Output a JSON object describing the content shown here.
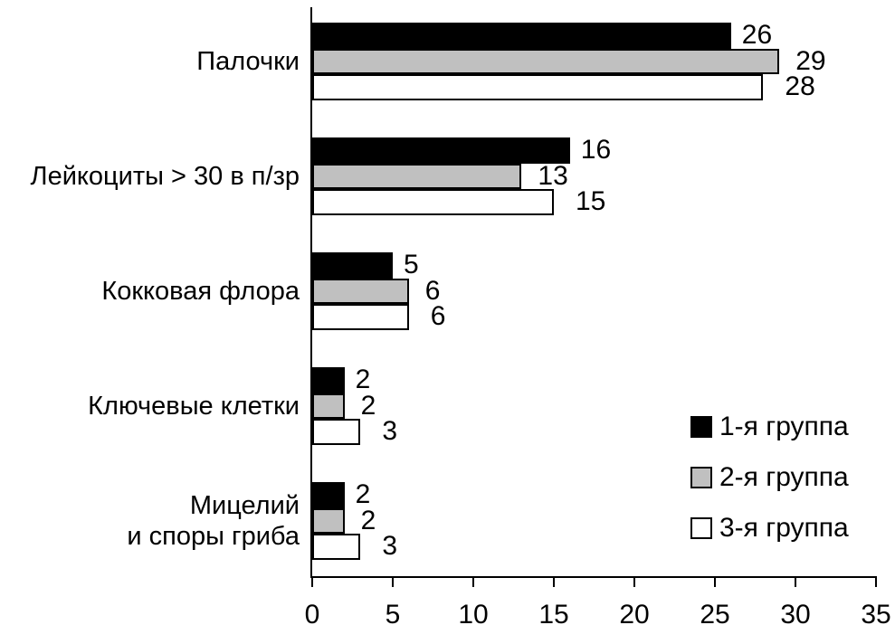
{
  "chart_data": {
    "type": "bar",
    "orientation": "horizontal",
    "title": "",
    "xlabel": "",
    "ylabel": "",
    "categories": [
      "Палочки",
      "Лейкоциты > 30 в п/зр",
      "Кокковая флора",
      "Ключевые клетки",
      "Мицелий и споры гриба"
    ],
    "category_label_lines": [
      [
        "Палочки"
      ],
      [
        "Лейкоциты > 30 в п/зр"
      ],
      [
        "Кокковая флора"
      ],
      [
        "Ключевые клетки"
      ],
      [
        "Мицелий",
        "и споры гриба"
      ]
    ],
    "series": [
      {
        "name": "1-я группа",
        "color": "#000000",
        "values": [
          26,
          16,
          5,
          2,
          2
        ]
      },
      {
        "name": "2-я группа",
        "color": "#c0c0c0",
        "values": [
          29,
          13,
          6,
          2,
          2
        ]
      },
      {
        "name": "3-я группа",
        "color": "#ffffff",
        "values": [
          28,
          15,
          6,
          3,
          3
        ]
      }
    ],
    "xlim": [
      0,
      35
    ],
    "x_ticks": [
      0,
      5,
      10,
      15,
      20,
      25,
      30,
      35
    ],
    "grid": false,
    "bar_border_color": "#000000",
    "axis_color": "#000000",
    "background_color": "#ffffff",
    "legend_position": "bottom-right",
    "data_labels_shown": true
  }
}
